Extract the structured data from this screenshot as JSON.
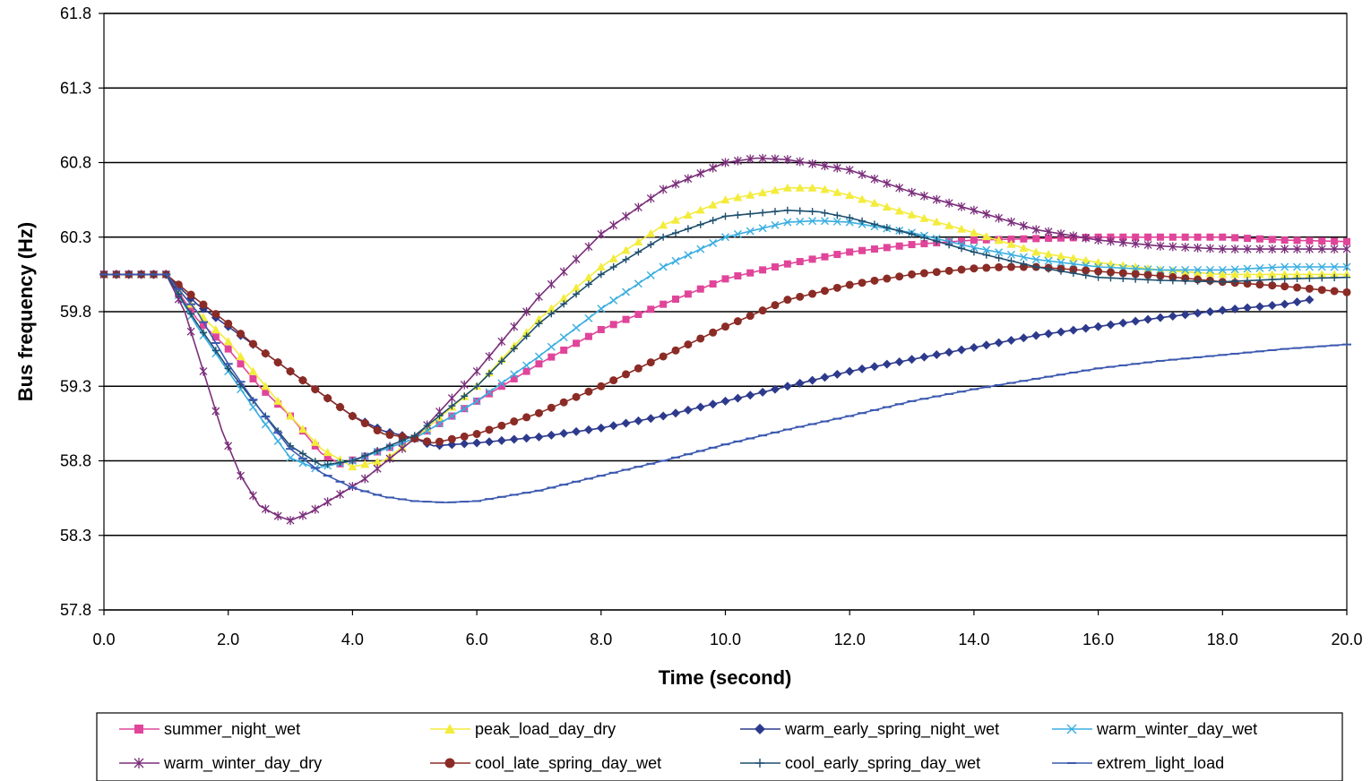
{
  "chart_data": {
    "type": "line",
    "title": "",
    "xlabel": "Time (second)",
    "ylabel": "Bus frequency (Hz)",
    "xlim": [
      0,
      20
    ],
    "ylim": [
      57.8,
      61.8
    ],
    "x_ticks": [
      "0.0",
      "2.0",
      "4.0",
      "6.0",
      "8.0",
      "10.0",
      "12.0",
      "14.0",
      "16.0",
      "18.0",
      "20.0"
    ],
    "y_ticks": [
      "57.8",
      "58.3",
      "58.8",
      "59.3",
      "59.8",
      "60.3",
      "60.8",
      "61.3",
      "61.8"
    ],
    "grid": "horizontal",
    "legend_position": "bottom",
    "series": [
      {
        "name": "summer_night_wet",
        "color": "#e0459a",
        "marker": "square",
        "points": [
          [
            0,
            60.05
          ],
          [
            1,
            60.05
          ],
          [
            1.5,
            59.75
          ],
          [
            2,
            59.55
          ],
          [
            2.5,
            59.3
          ],
          [
            3,
            59.1
          ],
          [
            3.5,
            58.85
          ],
          [
            3.8,
            58.78
          ],
          [
            4.2,
            58.83
          ],
          [
            5,
            58.95
          ],
          [
            6,
            59.2
          ],
          [
            7,
            59.45
          ],
          [
            8,
            59.68
          ],
          [
            9,
            59.85
          ],
          [
            10,
            60.02
          ],
          [
            11,
            60.12
          ],
          [
            12,
            60.2
          ],
          [
            13,
            60.25
          ],
          [
            14,
            60.28
          ],
          [
            15,
            60.29
          ],
          [
            16,
            60.3
          ],
          [
            18,
            60.3
          ],
          [
            19,
            60.28
          ],
          [
            20,
            60.27
          ]
        ]
      },
      {
        "name": "peak_load_day_dry",
        "color": "#f3ec3c",
        "marker": "triangle",
        "points": [
          [
            0,
            60.05
          ],
          [
            1,
            60.05
          ],
          [
            1.5,
            59.8
          ],
          [
            2,
            59.6
          ],
          [
            2.5,
            59.35
          ],
          [
            3,
            59.1
          ],
          [
            3.5,
            58.88
          ],
          [
            4,
            58.76
          ],
          [
            4.5,
            58.8
          ],
          [
            5,
            58.95
          ],
          [
            6,
            59.3
          ],
          [
            7,
            59.75
          ],
          [
            8,
            60.1
          ],
          [
            9,
            60.38
          ],
          [
            10,
            60.55
          ],
          [
            11,
            60.63
          ],
          [
            11.5,
            60.63
          ],
          [
            12,
            60.58
          ],
          [
            13,
            60.45
          ],
          [
            14,
            60.33
          ],
          [
            15,
            60.2
          ],
          [
            16,
            60.13
          ],
          [
            17,
            60.08
          ],
          [
            18,
            60.05
          ],
          [
            20,
            60.05
          ]
        ]
      },
      {
        "name": "warm_early_spring_night_wet",
        "color": "#2d3a8c",
        "marker": "diamond",
        "points": [
          [
            0,
            60.05
          ],
          [
            1,
            60.05
          ],
          [
            1.5,
            59.85
          ],
          [
            2,
            59.7
          ],
          [
            2.5,
            59.55
          ],
          [
            3,
            59.4
          ],
          [
            3.5,
            59.25
          ],
          [
            4,
            59.1
          ],
          [
            4.5,
            59.0
          ],
          [
            5,
            58.95
          ],
          [
            5.3,
            58.9
          ],
          [
            6,
            58.92
          ],
          [
            7,
            58.96
          ],
          [
            8,
            59.02
          ],
          [
            9,
            59.1
          ],
          [
            10,
            59.2
          ],
          [
            11,
            59.3
          ],
          [
            12,
            59.4
          ],
          [
            13,
            59.48
          ],
          [
            14,
            59.56
          ],
          [
            15,
            59.64
          ],
          [
            16,
            59.7
          ],
          [
            17,
            59.76
          ],
          [
            18,
            59.81
          ],
          [
            19,
            59.85
          ],
          [
            19.4,
            59.88
          ]
        ]
      },
      {
        "name": "warm_winter_day_wet",
        "color": "#3aaee0",
        "marker": "x",
        "points": [
          [
            0,
            60.05
          ],
          [
            1,
            60.05
          ],
          [
            1.5,
            59.7
          ],
          [
            2,
            59.4
          ],
          [
            2.5,
            59.1
          ],
          [
            3,
            58.82
          ],
          [
            3.4,
            58.75
          ],
          [
            4,
            58.8
          ],
          [
            5,
            58.95
          ],
          [
            6,
            59.2
          ],
          [
            7,
            59.5
          ],
          [
            8,
            59.82
          ],
          [
            9,
            60.1
          ],
          [
            10,
            60.3
          ],
          [
            11,
            60.4
          ],
          [
            11.5,
            60.41
          ],
          [
            12,
            60.4
          ],
          [
            13,
            60.33
          ],
          [
            14,
            60.23
          ],
          [
            15,
            60.15
          ],
          [
            16,
            60.1
          ],
          [
            17,
            60.08
          ],
          [
            18,
            60.08
          ],
          [
            19,
            60.1
          ],
          [
            20,
            60.1
          ]
        ]
      },
      {
        "name": "warm_winter_day_dry",
        "color": "#7a2e7a",
        "marker": "star",
        "points": [
          [
            0,
            60.05
          ],
          [
            1,
            60.05
          ],
          [
            1.3,
            59.8
          ],
          [
            1.6,
            59.4
          ],
          [
            1.9,
            59.0
          ],
          [
            2.2,
            58.7
          ],
          [
            2.5,
            58.5
          ],
          [
            2.8,
            58.43
          ],
          [
            3.0,
            58.4
          ],
          [
            3.3,
            58.45
          ],
          [
            3.7,
            58.55
          ],
          [
            4.2,
            58.68
          ],
          [
            5,
            58.95
          ],
          [
            6,
            59.4
          ],
          [
            7,
            59.9
          ],
          [
            8,
            60.32
          ],
          [
            9,
            60.62
          ],
          [
            10,
            60.8
          ],
          [
            10.5,
            60.83
          ],
          [
            11,
            60.82
          ],
          [
            12,
            60.75
          ],
          [
            13,
            60.6
          ],
          [
            14,
            60.48
          ],
          [
            15,
            60.35
          ],
          [
            16,
            60.28
          ],
          [
            17,
            60.24
          ],
          [
            18,
            60.22
          ],
          [
            19,
            60.22
          ],
          [
            20,
            60.22
          ]
        ]
      },
      {
        "name": "cool_late_spring_day_wet",
        "color": "#8b2b25",
        "marker": "circle",
        "points": [
          [
            0,
            60.05
          ],
          [
            1,
            60.05
          ],
          [
            1.5,
            59.88
          ],
          [
            2,
            59.72
          ],
          [
            2.5,
            59.55
          ],
          [
            3,
            59.4
          ],
          [
            3.5,
            59.25
          ],
          [
            4,
            59.1
          ],
          [
            4.5,
            58.98
          ],
          [
            5,
            58.95
          ],
          [
            5.3,
            58.92
          ],
          [
            6,
            58.98
          ],
          [
            7,
            59.12
          ],
          [
            8,
            59.3
          ],
          [
            9,
            59.5
          ],
          [
            10,
            59.7
          ],
          [
            11,
            59.88
          ],
          [
            12,
            59.98
          ],
          [
            13,
            60.05
          ],
          [
            14,
            60.09
          ],
          [
            14.5,
            60.1
          ],
          [
            15,
            60.1
          ],
          [
            16,
            60.07
          ],
          [
            17,
            60.04
          ],
          [
            18,
            60.0
          ],
          [
            19,
            59.97
          ],
          [
            20,
            59.93
          ]
        ]
      },
      {
        "name": "cool_early_spring_day_wet",
        "color": "#1f4f6e",
        "marker": "plus",
        "points": [
          [
            0,
            60.05
          ],
          [
            1,
            60.05
          ],
          [
            1.5,
            59.72
          ],
          [
            2,
            59.42
          ],
          [
            2.5,
            59.15
          ],
          [
            3,
            58.9
          ],
          [
            3.5,
            58.77
          ],
          [
            4,
            58.8
          ],
          [
            5,
            58.97
          ],
          [
            6,
            59.3
          ],
          [
            7,
            59.72
          ],
          [
            8,
            60.05
          ],
          [
            9,
            60.3
          ],
          [
            10,
            60.44
          ],
          [
            11,
            60.48
          ],
          [
            11.5,
            60.47
          ],
          [
            12,
            60.43
          ],
          [
            13,
            60.32
          ],
          [
            14,
            60.2
          ],
          [
            15,
            60.1
          ],
          [
            16,
            60.03
          ],
          [
            17,
            60.01
          ],
          [
            18,
            60.0
          ],
          [
            19,
            60.02
          ],
          [
            20,
            60.03
          ]
        ]
      },
      {
        "name": "extrem_light_load",
        "color": "#3b58b0",
        "marker": "dash",
        "points": [
          [
            0,
            60.05
          ],
          [
            1,
            60.05
          ],
          [
            1.5,
            59.8
          ],
          [
            2,
            59.45
          ],
          [
            2.5,
            59.15
          ],
          [
            3,
            58.88
          ],
          [
            3.5,
            58.72
          ],
          [
            4,
            58.62
          ],
          [
            4.5,
            58.56
          ],
          [
            5,
            58.53
          ],
          [
            5.5,
            58.52
          ],
          [
            6,
            58.53
          ],
          [
            7,
            58.6
          ],
          [
            8,
            58.7
          ],
          [
            9,
            58.8
          ],
          [
            10,
            58.91
          ],
          [
            11,
            59.01
          ],
          [
            12,
            59.1
          ],
          [
            13,
            59.2
          ],
          [
            14,
            59.28
          ],
          [
            15,
            59.35
          ],
          [
            16,
            59.42
          ],
          [
            17,
            59.47
          ],
          [
            18,
            59.51
          ],
          [
            19,
            59.55
          ],
          [
            20,
            59.58
          ]
        ]
      }
    ]
  }
}
